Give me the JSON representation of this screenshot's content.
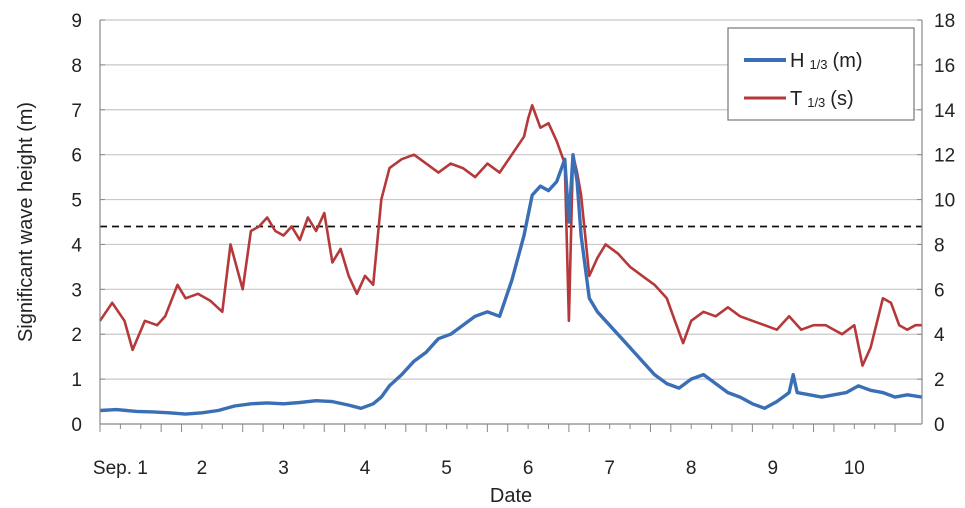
{
  "chart_data": {
    "type": "line",
    "xlabel": "Date",
    "ylabel": "Significant wave height (m)",
    "y2label": "",
    "categories": [
      "Sep. 1",
      "2",
      "3",
      "4",
      "5",
      "6",
      "7",
      "8",
      "9",
      "10"
    ],
    "xlim": [
      0.75,
      10.83
    ],
    "ylim": [
      0,
      9
    ],
    "y2lim": [
      0,
      18
    ],
    "yticks": [
      "0",
      "1",
      "2",
      "3",
      "4",
      "5",
      "6",
      "7",
      "8",
      "9"
    ],
    "y2ticks": [
      "0",
      "2",
      "4",
      "6",
      "8",
      "10",
      "12",
      "14",
      "16",
      "18"
    ],
    "grid": true,
    "legend_position": "top-right",
    "reference_line": {
      "y": 4.4,
      "style": "dashed"
    },
    "series": [
      {
        "name": "H 1/3 (m)",
        "name_main": "H",
        "name_sub": "1/3",
        "name_unit": "(m)",
        "axis": "left",
        "color": "#3a6fb5",
        "x": [
          0.75,
          0.95,
          1.2,
          1.4,
          1.6,
          1.8,
          2.0,
          2.2,
          2.4,
          2.6,
          2.8,
          3.0,
          3.2,
          3.4,
          3.6,
          3.8,
          3.95,
          4.1,
          4.2,
          4.3,
          4.45,
          4.6,
          4.75,
          4.9,
          5.05,
          5.2,
          5.35,
          5.5,
          5.65,
          5.8,
          5.95,
          6.05,
          6.15,
          6.25,
          6.35,
          6.45,
          6.5,
          6.55,
          6.6,
          6.65,
          6.75,
          6.85,
          6.95,
          7.1,
          7.25,
          7.4,
          7.55,
          7.7,
          7.85,
          8.0,
          8.15,
          8.3,
          8.45,
          8.6,
          8.75,
          8.9,
          9.05,
          9.2,
          9.25,
          9.3,
          9.45,
          9.6,
          9.75,
          9.9,
          10.05,
          10.2,
          10.35,
          10.5,
          10.65,
          10.83
        ],
        "values": [
          0.3,
          0.32,
          0.28,
          0.27,
          0.25,
          0.22,
          0.25,
          0.3,
          0.4,
          0.45,
          0.47,
          0.45,
          0.48,
          0.52,
          0.5,
          0.42,
          0.35,
          0.45,
          0.6,
          0.85,
          1.1,
          1.4,
          1.6,
          1.9,
          2.0,
          2.2,
          2.4,
          2.5,
          2.4,
          3.2,
          4.2,
          5.1,
          5.3,
          5.2,
          5.4,
          5.9,
          4.5,
          6.0,
          5.4,
          4.2,
          2.8,
          2.5,
          2.3,
          2.0,
          1.7,
          1.4,
          1.1,
          0.9,
          0.8,
          1.0,
          1.1,
          0.9,
          0.7,
          0.6,
          0.45,
          0.35,
          0.5,
          0.7,
          1.1,
          0.7,
          0.65,
          0.6,
          0.65,
          0.7,
          0.85,
          0.75,
          0.7,
          0.6,
          0.65,
          0.6
        ]
      },
      {
        "name": "T 1/3 (s)",
        "name_main": "T",
        "name_sub": "1/3",
        "name_unit": "(s)",
        "axis": "right",
        "color": "#b5393a",
        "x": [
          0.75,
          0.9,
          1.05,
          1.15,
          1.3,
          1.45,
          1.55,
          1.7,
          1.8,
          1.95,
          2.1,
          2.25,
          2.35,
          2.5,
          2.6,
          2.7,
          2.8,
          2.9,
          3.0,
          3.1,
          3.2,
          3.3,
          3.4,
          3.5,
          3.6,
          3.7,
          3.8,
          3.9,
          4.0,
          4.1,
          4.2,
          4.3,
          4.45,
          4.6,
          4.75,
          4.9,
          5.05,
          5.2,
          5.35,
          5.5,
          5.65,
          5.8,
          5.95,
          6.0,
          6.05,
          6.15,
          6.25,
          6.35,
          6.45,
          6.5,
          6.55,
          6.6,
          6.65,
          6.75,
          6.85,
          6.95,
          7.1,
          7.25,
          7.4,
          7.55,
          7.7,
          7.8,
          7.9,
          8.0,
          8.15,
          8.3,
          8.45,
          8.6,
          8.75,
          8.9,
          9.05,
          9.2,
          9.35,
          9.5,
          9.65,
          9.75,
          9.85,
          10.0,
          10.1,
          10.2,
          10.35,
          10.45,
          10.55,
          10.65,
          10.75,
          10.83
        ],
        "values": [
          4.6,
          5.4,
          4.6,
          3.3,
          4.6,
          4.4,
          4.8,
          6.2,
          5.6,
          5.8,
          5.5,
          5.0,
          8.0,
          6.0,
          8.6,
          8.8,
          9.2,
          8.6,
          8.4,
          8.8,
          8.2,
          9.2,
          8.6,
          9.4,
          7.2,
          7.8,
          6.6,
          5.8,
          6.6,
          6.2,
          10.0,
          11.4,
          11.8,
          12.0,
          11.6,
          11.2,
          11.6,
          11.4,
          11.0,
          11.6,
          11.2,
          12.0,
          12.8,
          13.6,
          14.2,
          13.2,
          13.4,
          12.6,
          11.6,
          4.6,
          12.0,
          11.2,
          10.2,
          6.6,
          7.4,
          8.0,
          7.6,
          7.0,
          6.6,
          6.2,
          5.6,
          4.6,
          3.6,
          4.6,
          5.0,
          4.8,
          5.2,
          4.8,
          4.6,
          4.4,
          4.2,
          4.8,
          4.2,
          4.4,
          4.4,
          4.2,
          4.0,
          4.4,
          2.6,
          3.4,
          5.6,
          5.4,
          4.4,
          4.2,
          4.4,
          4.4
        ]
      }
    ]
  }
}
